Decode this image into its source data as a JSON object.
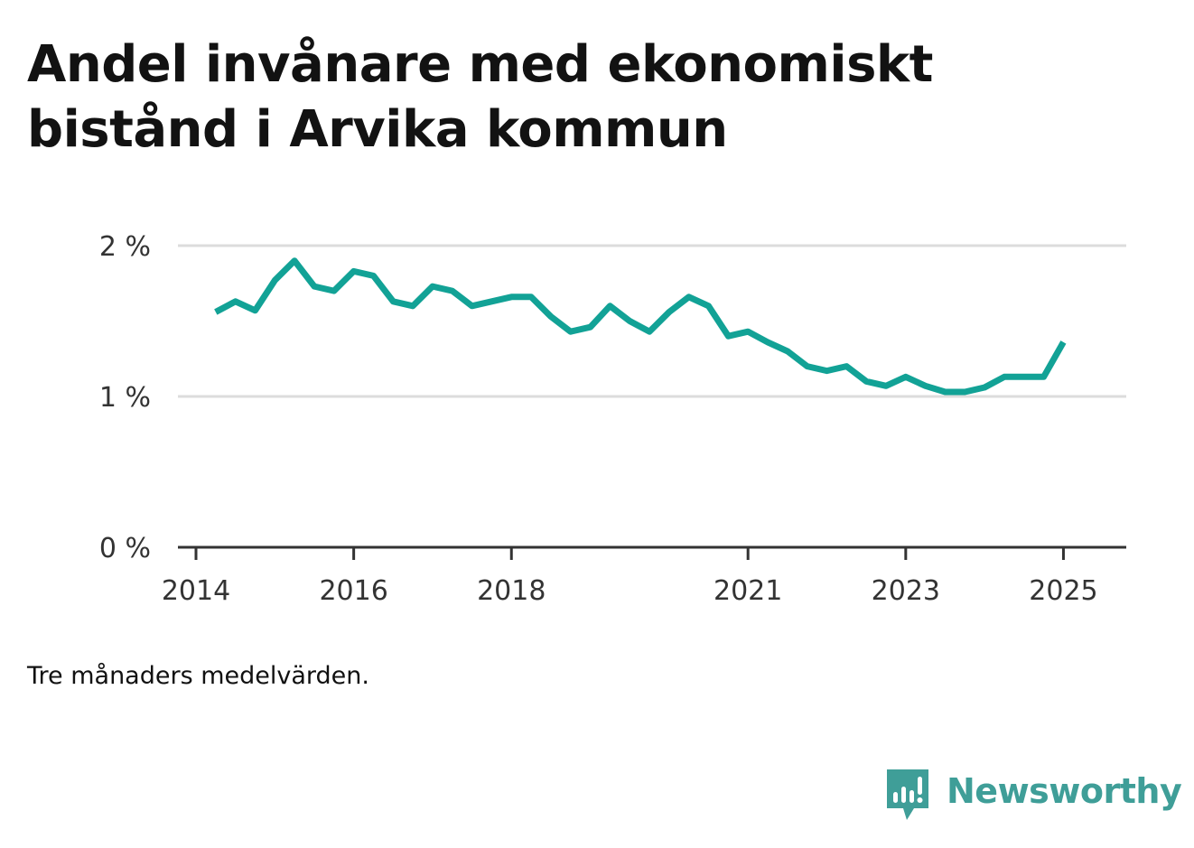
{
  "title": "Andel invånare med ekonomiskt bistånd i Arvika kommun",
  "note": "Tre månaders medelvärden.",
  "brand": {
    "name": "Newsworthy",
    "color": "#3f9e98"
  },
  "chart_data": {
    "type": "line",
    "title": "Andel invånare med ekonomiskt bistånd i Arvika kommun",
    "xlabel": "",
    "ylabel": "",
    "x_ticks": [
      "2014",
      "2016",
      "2018",
      "2021",
      "2023",
      "2025"
    ],
    "y_ticks": [
      "0 %",
      "1 %",
      "2 %"
    ],
    "ylim": [
      0,
      2
    ],
    "grid": true,
    "line_color": "#12a296",
    "series": [
      {
        "x": [
          "2014-04",
          "2014-07",
          "2014-10",
          "2015-01",
          "2015-04",
          "2015-07",
          "2015-10",
          "2016-01",
          "2016-04",
          "2016-07",
          "2016-10",
          "2017-01",
          "2017-04",
          "2017-07",
          "2017-10",
          "2018-01",
          "2018-04",
          "2018-07",
          "2018-10",
          "2019-01",
          "2019-04",
          "2019-07",
          "2019-10",
          "2020-01",
          "2020-04",
          "2020-07",
          "2020-10",
          "2021-01",
          "2021-04",
          "2021-07",
          "2021-10",
          "2022-01",
          "2022-04",
          "2022-07",
          "2022-10",
          "2023-01",
          "2023-04",
          "2023-07",
          "2023-10",
          "2024-01",
          "2024-04",
          "2024-07",
          "2024-10",
          "2025-01"
        ],
        "values": [
          1.56,
          1.63,
          1.57,
          1.77,
          1.9,
          1.73,
          1.7,
          1.83,
          1.8,
          1.63,
          1.6,
          1.73,
          1.7,
          1.6,
          1.63,
          1.66,
          1.66,
          1.53,
          1.43,
          1.46,
          1.6,
          1.5,
          1.43,
          1.56,
          1.66,
          1.6,
          1.4,
          1.43,
          1.36,
          1.3,
          1.2,
          1.17,
          1.2,
          1.1,
          1.07,
          1.13,
          1.07,
          1.03,
          1.03,
          1.06,
          1.13,
          1.13,
          1.13,
          1.36
        ]
      }
    ]
  }
}
